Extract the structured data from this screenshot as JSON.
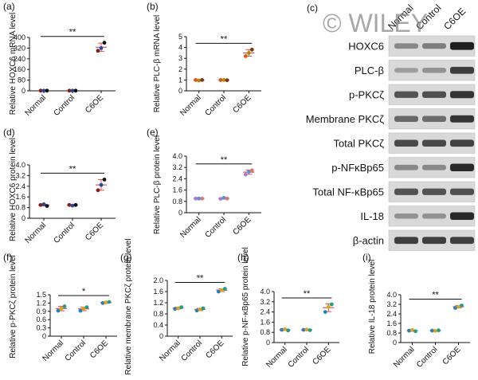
{
  "chart_data": [
    {
      "panel": "(a)",
      "type": "scatter",
      "ylabel": "Relative HOXC6 mRNA level",
      "categories": [
        "Normal",
        "Control",
        "C6OE"
      ],
      "yticks": [
        "0",
        "80",
        "160",
        "240",
        "320",
        "400"
      ],
      "ylim": [
        0,
        400
      ],
      "values": [
        [
          1,
          1,
          1
        ],
        [
          1,
          1,
          1
        ],
        [
          300,
          320,
          360
        ]
      ],
      "point_colors": [
        "#8b1a1a",
        "#1f4e9e",
        "#111111"
      ],
      "errorbar_color": "#e05252",
      "significance": "**"
    },
    {
      "panel": "(b)",
      "type": "scatter",
      "ylabel": "Relative PLC-β mRNA level",
      "categories": [
        "Normal",
        "Control",
        "C6OE"
      ],
      "yticks": [
        "0",
        "1",
        "2",
        "3",
        "4",
        "5"
      ],
      "ylim": [
        0,
        5
      ],
      "values": [
        [
          1.0,
          0.95,
          1.0
        ],
        [
          1.0,
          1.0,
          0.98
        ],
        [
          3.2,
          3.5,
          3.8
        ]
      ],
      "point_colors": [
        "#d9531e",
        "#b8860b",
        "#7a3a1a"
      ],
      "errorbar_color": "#e05252",
      "significance": "**"
    },
    {
      "panel": "(d)",
      "type": "scatter",
      "ylabel": "Relative HOXC6 protein level",
      "categories": [
        "Normal",
        "Control",
        "C6OE"
      ],
      "yticks": [
        "0",
        "0.8",
        "1.6",
        "2.4",
        "3.2",
        "4.0"
      ],
      "ylim": [
        0,
        4.0
      ],
      "values": [
        [
          1.0,
          1.05,
          0.92
        ],
        [
          1.0,
          0.95,
          1.0
        ],
        [
          2.1,
          2.5,
          2.9
        ]
      ],
      "point_colors": [
        "#8b1a1a",
        "#1f4e9e",
        "#111111"
      ],
      "errorbar_color": "#e05252",
      "significance": "**"
    },
    {
      "panel": "(e)",
      "type": "scatter",
      "ylabel": "Relative PLC-β protein level",
      "categories": [
        "Normal",
        "Control",
        "C6OE"
      ],
      "yticks": [
        "0",
        "0.8",
        "1.6",
        "2.4",
        "3.2",
        "4.0"
      ],
      "ylim": [
        0,
        4.0
      ],
      "values": [
        [
          1.0,
          1.0,
          1.0
        ],
        [
          0.98,
          1.05,
          1.0
        ],
        [
          2.7,
          2.9,
          3.0
        ]
      ],
      "point_colors": [
        "#a67bd6",
        "#5b8fd6",
        "#d97a7a"
      ],
      "errorbar_color": "#e05252",
      "significance": "**"
    },
    {
      "panel": "(f)",
      "type": "scatter",
      "ylabel": "Relative p-PKCζ protein level",
      "categories": [
        "Normal",
        "Control",
        "C6OE"
      ],
      "yticks": [
        "0",
        "0.3",
        "0.6",
        "0.9",
        "1.2",
        "1.5"
      ],
      "ylim": [
        0,
        1.5
      ],
      "values": [
        [
          0.92,
          1.0,
          1.08
        ],
        [
          0.92,
          1.0,
          1.05
        ],
        [
          1.2,
          1.22,
          1.24
        ]
      ],
      "point_colors": [
        "#2c7fb8",
        "#e3a21a",
        "#1f9e89"
      ],
      "errorbar_color": "#e05252",
      "significance": "*"
    },
    {
      "panel": "(g)",
      "type": "scatter",
      "ylabel": "Relative membrane PKCζ protein level",
      "categories": [
        "Normal",
        "Control",
        "C6OE"
      ],
      "yticks": [
        "0",
        "0.4",
        "0.8",
        "1.2",
        "1.6",
        "2.0"
      ],
      "ylim": [
        0,
        2.0
      ],
      "values": [
        [
          0.98,
          1.0,
          1.04
        ],
        [
          0.92,
          0.96,
          1.0
        ],
        [
          1.6,
          1.65,
          1.7
        ]
      ],
      "point_colors": [
        "#2c7fb8",
        "#e3a21a",
        "#1f9e89"
      ],
      "errorbar_color": "#e05252",
      "significance": "**"
    },
    {
      "panel": "(h)",
      "type": "scatter",
      "ylabel": "Relative p-NF-κBp65 protein level",
      "categories": [
        "Normal",
        "Control",
        "C6OE"
      ],
      "yticks": [
        "0",
        "0.8",
        "1.6",
        "2.4",
        "3.2",
        "4.0"
      ],
      "ylim": [
        0,
        4.0
      ],
      "values": [
        [
          1.0,
          1.05,
          0.95
        ],
        [
          1.0,
          1.02,
          0.97
        ],
        [
          2.4,
          2.8,
          3.0
        ]
      ],
      "point_colors": [
        "#2c7fb8",
        "#e3a21a",
        "#1f9e89"
      ],
      "errorbar_color": "#e05252",
      "significance": "**"
    },
    {
      "panel": "(i)",
      "type": "scatter",
      "ylabel": "Relative IL-18 protein level",
      "categories": [
        "Normal",
        "Control",
        "C6OE"
      ],
      "yticks": [
        "0",
        "0.8",
        "1.6",
        "2.4",
        "3.2",
        "4.0"
      ],
      "ylim": [
        0,
        4.0
      ],
      "values": [
        [
          1.0,
          1.05,
          0.95
        ],
        [
          1.0,
          0.98,
          1.02
        ],
        [
          2.9,
          3.0,
          3.1
        ]
      ],
      "point_colors": [
        "#2c7fb8",
        "#e3a21a",
        "#1f9e89"
      ],
      "errorbar_color": "#e05252",
      "significance": "**"
    }
  ],
  "western_blot": {
    "panel": "(c)",
    "lanes": [
      "Normal",
      "Control",
      "C6OE"
    ],
    "watermark": "© WILEY",
    "rows": [
      {
        "label": "HOXC6",
        "intensity": [
          0.45,
          0.5,
          0.95
        ]
      },
      {
        "label": "PLC-β",
        "intensity": [
          0.35,
          0.4,
          0.8
        ]
      },
      {
        "label": "p-PKCζ",
        "intensity": [
          0.7,
          0.72,
          0.85
        ]
      },
      {
        "label": "Membrane PKCζ",
        "intensity": [
          0.6,
          0.58,
          0.85
        ]
      },
      {
        "label": "Total PKCζ",
        "intensity": [
          0.75,
          0.75,
          0.78
        ]
      },
      {
        "label": "p-NFκBp65",
        "intensity": [
          0.45,
          0.45,
          0.9
        ]
      },
      {
        "label": "Total NF-κBp65",
        "intensity": [
          0.7,
          0.7,
          0.72
        ]
      },
      {
        "label": "IL-18",
        "intensity": [
          0.4,
          0.4,
          0.9
        ]
      },
      {
        "label": "β-actin",
        "intensity": [
          0.8,
          0.8,
          0.8
        ]
      }
    ]
  }
}
